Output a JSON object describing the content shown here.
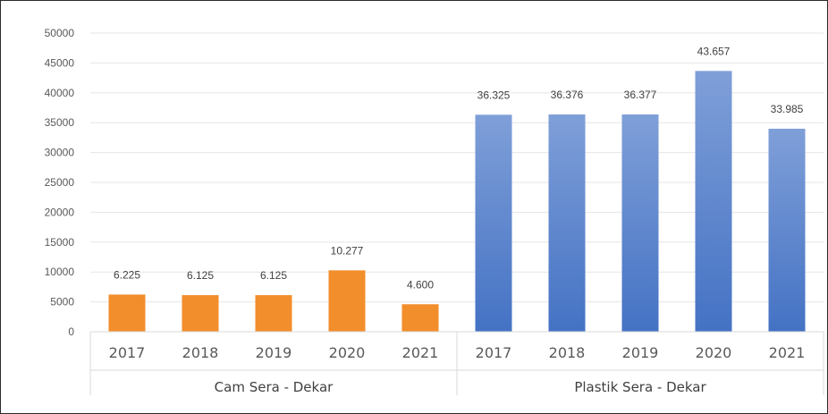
{
  "chart_data": {
    "type": "bar",
    "groups": [
      {
        "name": "Cam Sera - Dekar",
        "categories": [
          "2017",
          "2018",
          "2019",
          "2020",
          "2021"
        ],
        "values": [
          6225,
          6125,
          6125,
          10277,
          4600
        ],
        "labels": [
          "6.225",
          "6.125",
          "6.125",
          "10.277",
          "4.600"
        ],
        "color": "#F28E2B"
      },
      {
        "name": "Plastik Sera - Dekar",
        "categories": [
          "2017",
          "2018",
          "2019",
          "2020",
          "2021"
        ],
        "values": [
          36325,
          36376,
          36377,
          43657,
          33985
        ],
        "labels": [
          "36.325",
          "36.376",
          "36.377",
          "43.657",
          "33.985"
        ],
        "color": "#4472C4",
        "color_light": "#7F9FD8"
      }
    ],
    "ylim": [
      0,
      50000
    ],
    "yticks": [
      "0",
      "5000",
      "10000",
      "15000",
      "20000",
      "25000",
      "30000",
      "35000",
      "40000",
      "45000",
      "50000"
    ],
    "grid": true,
    "title": "",
    "xlabel": "",
    "ylabel": ""
  }
}
